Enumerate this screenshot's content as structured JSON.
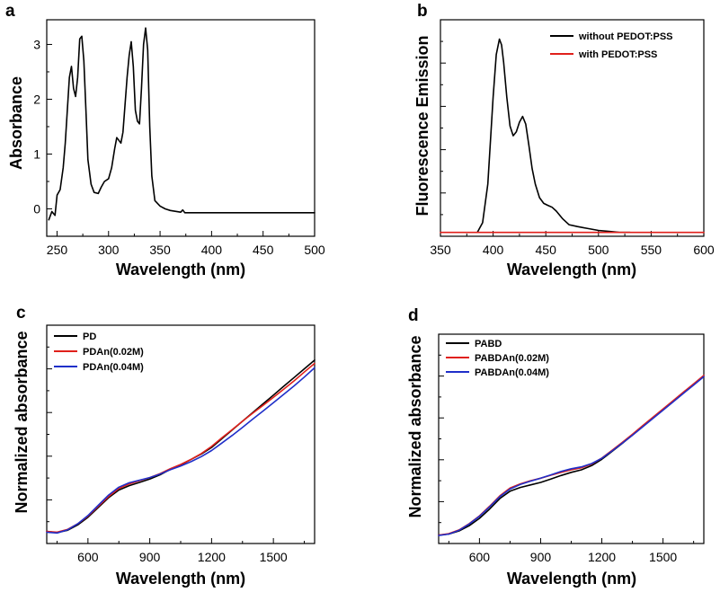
{
  "chart_data": [
    {
      "panel": "a",
      "type": "line",
      "xlabel": "Wavelength (nm)",
      "ylabel": "Absorbance",
      "xlim": [
        240,
        500
      ],
      "ylim": [
        -0.5,
        3.45
      ],
      "xticks": [
        250,
        300,
        350,
        400,
        450,
        500
      ],
      "yticks": [
        0,
        1,
        2,
        3
      ],
      "series": [
        {
          "name": "absorbance",
          "color": "#000000",
          "x": [
            242,
            245,
            248,
            250,
            253,
            256,
            258,
            260,
            262,
            264,
            266,
            268,
            270,
            272,
            274,
            276,
            278,
            280,
            283,
            286,
            290,
            293,
            296,
            300,
            303,
            306,
            308,
            310,
            312,
            314,
            316,
            318,
            320,
            322,
            324,
            326,
            328,
            330,
            332,
            334,
            336,
            338,
            340,
            342,
            345,
            350,
            355,
            360,
            370,
            372,
            374,
            380,
            400,
            450,
            500
          ],
          "y": [
            -0.2,
            -0.05,
            -0.12,
            0.25,
            0.35,
            0.75,
            1.2,
            1.8,
            2.4,
            2.6,
            2.2,
            2.05,
            2.4,
            3.1,
            3.15,
            2.7,
            1.8,
            0.9,
            0.45,
            0.3,
            0.28,
            0.4,
            0.5,
            0.55,
            0.75,
            1.1,
            1.3,
            1.25,
            1.2,
            1.4,
            1.9,
            2.4,
            2.8,
            3.05,
            2.6,
            1.8,
            1.6,
            1.55,
            2.2,
            3.0,
            3.3,
            2.9,
            1.5,
            0.6,
            0.15,
            0.05,
            0.0,
            -0.03,
            -0.06,
            -0.02,
            -0.07,
            -0.07,
            -0.07,
            -0.07,
            -0.07
          ]
        }
      ]
    },
    {
      "panel": "b",
      "type": "line",
      "xlabel": "Wavelength (nm)",
      "ylabel": "Fluorescence Emission",
      "xlim": [
        350,
        600
      ],
      "ylim": [
        -0.02,
        1.1
      ],
      "xticks": [
        350,
        400,
        450,
        500,
        550,
        600
      ],
      "yticks": [],
      "legend_position": "top-right",
      "series": [
        {
          "name": "without PEDOT:PSS",
          "color": "#000000",
          "x": [
            385,
            390,
            395,
            400,
            403,
            406,
            408,
            410,
            413,
            416,
            419,
            422,
            425,
            428,
            431,
            434,
            437,
            440,
            444,
            448,
            452,
            456,
            460,
            466,
            472,
            480,
            490,
            500,
            510,
            520,
            530
          ],
          "y": [
            0.0,
            0.05,
            0.25,
            0.7,
            0.92,
            1.0,
            0.97,
            0.88,
            0.7,
            0.55,
            0.5,
            0.52,
            0.57,
            0.6,
            0.56,
            0.45,
            0.33,
            0.25,
            0.18,
            0.15,
            0.14,
            0.13,
            0.11,
            0.07,
            0.04,
            0.03,
            0.02,
            0.01,
            0.005,
            0.0,
            0.0
          ]
        },
        {
          "name": "with PEDOT:PSS",
          "color": "#e0201b",
          "x": [
            350,
            600
          ],
          "y": [
            0.0,
            0.0
          ]
        }
      ]
    },
    {
      "panel": "c",
      "type": "line",
      "xlabel": "Wavelength (nm)",
      "ylabel": "Normalized absorbance",
      "xlim": [
        400,
        1700
      ],
      "ylim": [
        0,
        1
      ],
      "xticks": [
        600,
        900,
        1200,
        1500
      ],
      "yticks": [],
      "legend_position": "top-left",
      "series": [
        {
          "name": "PD",
          "color": "#000000",
          "x": [
            400,
            450,
            500,
            550,
            600,
            650,
            700,
            750,
            800,
            850,
            900,
            950,
            1000,
            1050,
            1100,
            1150,
            1200,
            1250,
            1300,
            1350,
            1400,
            1450,
            1500,
            1550,
            1600,
            1650,
            1700
          ],
          "y": [
            0.055,
            0.05,
            0.06,
            0.085,
            0.12,
            0.165,
            0.21,
            0.245,
            0.265,
            0.28,
            0.295,
            0.315,
            0.34,
            0.36,
            0.385,
            0.41,
            0.44,
            0.48,
            0.52,
            0.56,
            0.6,
            0.64,
            0.68,
            0.72,
            0.76,
            0.8,
            0.84
          ]
        },
        {
          "name": "PDAn(0.02M)",
          "color": "#e0201b",
          "x": [
            400,
            450,
            500,
            550,
            600,
            650,
            700,
            750,
            800,
            850,
            900,
            950,
            1000,
            1050,
            1100,
            1150,
            1200,
            1250,
            1300,
            1350,
            1400,
            1450,
            1500,
            1550,
            1600,
            1650,
            1700
          ],
          "y": [
            0.055,
            0.052,
            0.064,
            0.09,
            0.125,
            0.17,
            0.215,
            0.252,
            0.273,
            0.288,
            0.302,
            0.32,
            0.343,
            0.362,
            0.385,
            0.412,
            0.445,
            0.484,
            0.522,
            0.56,
            0.597,
            0.633,
            0.67,
            0.707,
            0.745,
            0.785,
            0.825
          ]
        },
        {
          "name": "PDAn(0.04M)",
          "color": "#1f2fc9",
          "x": [
            400,
            450,
            500,
            550,
            600,
            650,
            700,
            750,
            800,
            850,
            900,
            950,
            1000,
            1050,
            1100,
            1150,
            1200,
            1250,
            1300,
            1350,
            1400,
            1450,
            1500,
            1550,
            1600,
            1650,
            1700
          ],
          "y": [
            0.052,
            0.048,
            0.062,
            0.09,
            0.128,
            0.175,
            0.222,
            0.258,
            0.278,
            0.29,
            0.302,
            0.318,
            0.338,
            0.355,
            0.375,
            0.398,
            0.426,
            0.46,
            0.495,
            0.532,
            0.57,
            0.607,
            0.645,
            0.683,
            0.722,
            0.762,
            0.805
          ]
        }
      ]
    },
    {
      "panel": "d",
      "type": "line",
      "xlabel": "Wavelength (nm)",
      "ylabel": "Normalized absorbance",
      "xlim": [
        400,
        1700
      ],
      "ylim": [
        0,
        1
      ],
      "xticks": [
        600,
        900,
        1200,
        1500
      ],
      "yticks": [],
      "legend_position": "top-left",
      "series": [
        {
          "name": "PABD",
          "color": "#000000",
          "x": [
            400,
            450,
            500,
            550,
            600,
            650,
            700,
            750,
            800,
            850,
            900,
            950,
            1000,
            1050,
            1100,
            1150,
            1200,
            1250,
            1300,
            1350,
            1400,
            1450,
            1500,
            1550,
            1600,
            1650,
            1700
          ],
          "y": [
            0.04,
            0.045,
            0.06,
            0.085,
            0.12,
            0.165,
            0.215,
            0.25,
            0.268,
            0.28,
            0.292,
            0.308,
            0.325,
            0.34,
            0.352,
            0.372,
            0.402,
            0.44,
            0.478,
            0.518,
            0.56,
            0.6,
            0.64,
            0.68,
            0.72,
            0.76,
            0.8
          ]
        },
        {
          "name": "PABDAn(0.02M)",
          "color": "#e0201b",
          "x": [
            400,
            450,
            500,
            550,
            600,
            650,
            700,
            750,
            800,
            850,
            900,
            950,
            1000,
            1050,
            1100,
            1150,
            1200,
            1250,
            1300,
            1350,
            1400,
            1450,
            1500,
            1550,
            1600,
            1650,
            1700
          ],
          "y": [
            0.04,
            0.047,
            0.065,
            0.095,
            0.132,
            0.178,
            0.228,
            0.265,
            0.285,
            0.3,
            0.312,
            0.326,
            0.34,
            0.352,
            0.362,
            0.38,
            0.408,
            0.445,
            0.483,
            0.522,
            0.563,
            0.603,
            0.643,
            0.683,
            0.723,
            0.763,
            0.803
          ]
        },
        {
          "name": "PABDAn(0.04M)",
          "color": "#1f2fc9",
          "x": [
            400,
            450,
            500,
            550,
            600,
            650,
            700,
            750,
            800,
            850,
            900,
            950,
            1000,
            1050,
            1100,
            1150,
            1200,
            1250,
            1300,
            1350,
            1400,
            1450,
            1500,
            1550,
            1600,
            1650,
            1700
          ],
          "y": [
            0.038,
            0.045,
            0.063,
            0.093,
            0.13,
            0.175,
            0.224,
            0.26,
            0.282,
            0.298,
            0.312,
            0.328,
            0.344,
            0.357,
            0.366,
            0.382,
            0.407,
            0.442,
            0.479,
            0.517,
            0.557,
            0.597,
            0.637,
            0.677,
            0.717,
            0.757,
            0.797
          ]
        }
      ]
    }
  ]
}
